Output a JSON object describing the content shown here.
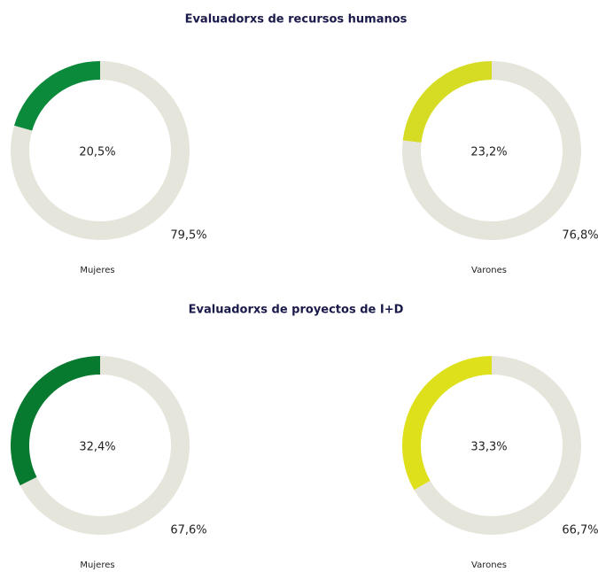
{
  "sections": [
    {
      "title": "Evaluadorxs de recursos humanos"
    },
    {
      "title": "Evaluadorxs de proyectos de I+D"
    }
  ],
  "chart_data": [
    {
      "type": "donut",
      "label": "Mujeres",
      "values": [
        20.5,
        79.5
      ],
      "value_labels": [
        "20,5%",
        "79,5%"
      ],
      "colors": [
        "#0a8a3a",
        "#e6e5dc"
      ]
    },
    {
      "type": "donut",
      "label": "Varones",
      "values": [
        23.2,
        76.8
      ],
      "value_labels": [
        "23,2%",
        "76,8%"
      ],
      "colors": [
        "#d6dc24",
        "#e6e5dc"
      ]
    },
    {
      "type": "donut",
      "label": "Mujeres",
      "values": [
        32.4,
        67.6
      ],
      "value_labels": [
        "32,4%",
        "67,6%"
      ],
      "colors": [
        "#077a30",
        "#e6e5dc"
      ]
    },
    {
      "type": "donut",
      "label": "Varones",
      "values": [
        33.3,
        66.7
      ],
      "value_labels": [
        "33,3%",
        "66,7%"
      ],
      "colors": [
        "#dde01a",
        "#e6e5dc"
      ]
    }
  ]
}
